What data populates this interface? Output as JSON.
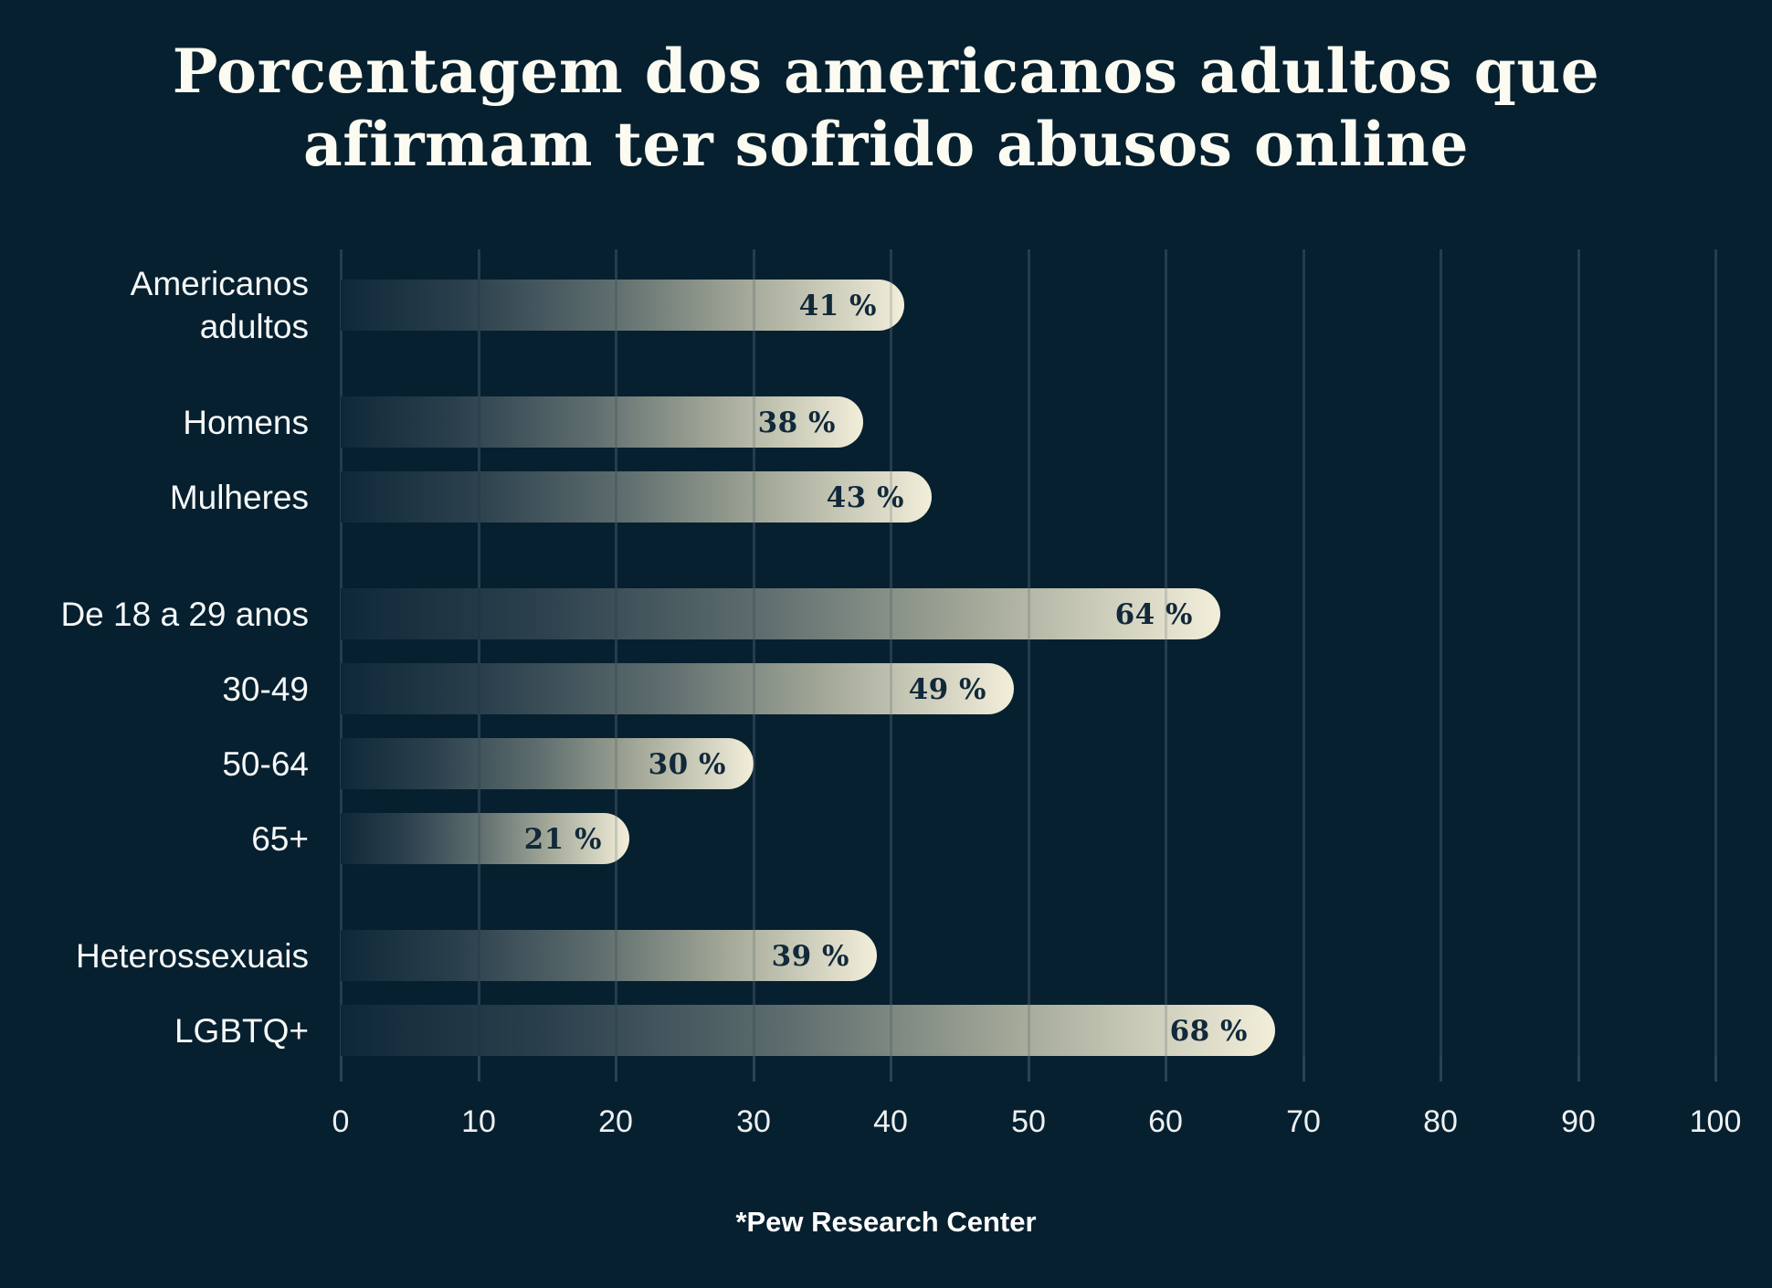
{
  "title": {
    "line1": "Porcentagem dos americanos adultos que",
    "line2": "afirmam ter sofrido abusos online"
  },
  "footer": {
    "source": "*Pew Research Center"
  },
  "colors": {
    "background": "#07202F",
    "gridline": "#2C4153",
    "bar_gradient_start": "#0F2838",
    "bar_gradient_end": "#F2EEDA",
    "value_label": "#11293A",
    "category_label": "#F5F8F8",
    "title_text": "#FBFBF2",
    "source_text": "#FFFFFF"
  },
  "chart_data": {
    "type": "bar",
    "orientation": "horizontal",
    "title": "Porcentagem dos americanos adultos que afirmam ter sofrido abusos online",
    "categories": [
      "Americanos adultos",
      "Homens",
      "Mulheres",
      "De 18 a 29 anos",
      "30-49",
      "50-64",
      "65+",
      "Heterossexuais",
      "LGBTQ+"
    ],
    "display_labels": [
      "Americanos\nadultos",
      "Homens",
      "Mulheres",
      "De 18 a 29 anos",
      "30-49",
      "50-64",
      "65+",
      "Heterossexuais",
      "LGBTQ+"
    ],
    "values": [
      41,
      38,
      43,
      64,
      49,
      30,
      21,
      39,
      68
    ],
    "value_labels": [
      "41 %",
      "38 %",
      "43 %",
      "64 %",
      "49 %",
      "30 %",
      "21 %",
      "39 %",
      "68 %"
    ],
    "groups": [
      0,
      1,
      1,
      2,
      2,
      2,
      2,
      3,
      3
    ],
    "x_ticks": [
      0,
      10,
      20,
      30,
      40,
      50,
      60,
      70,
      80,
      90,
      100
    ],
    "xlim": [
      0,
      100
    ],
    "xlabel": "",
    "ylabel": "",
    "grid": true,
    "legend": false,
    "source": "*Pew Research Center"
  }
}
